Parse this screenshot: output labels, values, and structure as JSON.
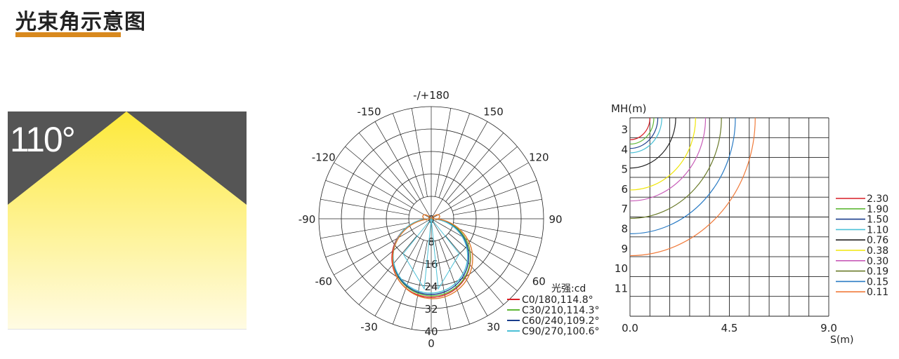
{
  "header": {
    "title": "光束角示意图",
    "accent_color": "#d8891e"
  },
  "beam_panel": {
    "angle_label": "110°",
    "background": "#555555",
    "light": "#fde93a"
  },
  "chart_data": [
    {
      "type": "polar",
      "angle_labels": [
        "-/+180",
        "150",
        "120",
        "90",
        "60",
        "30",
        "0",
        "-30",
        "-60",
        "-90",
        "-120",
        "-150"
      ],
      "radial_ticks": [
        "0",
        "8",
        "16",
        "24",
        "32",
        "40"
      ],
      "rmax": 40,
      "unit_label": "光强:cd",
      "series": [
        {
          "name": "C0/180,114.8°",
          "color": "#d91f26",
          "r": 28,
          "cx": 0
        },
        {
          "name": "C30/210,114.3°",
          "color": "#5fb736",
          "r": 27.5,
          "cx": 0.3
        },
        {
          "name": "C60/240,109.2°",
          "color": "#1a3e8c",
          "r": 27,
          "cx": -0.3
        },
        {
          "name": "C90/270,100.6°",
          "color": "#4bc0d6",
          "r": 26.5,
          "cx": -0.6
        }
      ],
      "fill_curve_color": "#e07b2e"
    },
    {
      "type": "isolux",
      "ylabel": "MH(m)",
      "xlabel": "S(m)",
      "y_ticks": [
        "3",
        "4",
        "5",
        "6",
        "7",
        "8",
        "9",
        "10",
        "11"
      ],
      "x_ticks": [
        "0.0",
        "4.5",
        "9.0"
      ],
      "levels": [
        {
          "value": "2.30",
          "color": "#d91f26",
          "r": 1.0
        },
        {
          "value": "1.90",
          "color": "#5fb736",
          "r": 1.2
        },
        {
          "value": "1.50",
          "color": "#1a3e8c",
          "r": 1.4
        },
        {
          "value": "1.10",
          "color": "#4bc0d6",
          "r": 1.6
        },
        {
          "value": "0.76",
          "color": "#222222",
          "r": 2.3
        },
        {
          "value": "0.38",
          "color": "#f0e60a",
          "r": 3.3
        },
        {
          "value": "0.30",
          "color": "#c85cb8",
          "r": 3.8
        },
        {
          "value": "0.19",
          "color": "#6a7a2a",
          "r": 4.6
        },
        {
          "value": "0.15",
          "color": "#2a7bc4",
          "r": 5.3
        },
        {
          "value": "0.11",
          "color": "#f07a3a",
          "r": 6.3
        }
      ]
    }
  ]
}
